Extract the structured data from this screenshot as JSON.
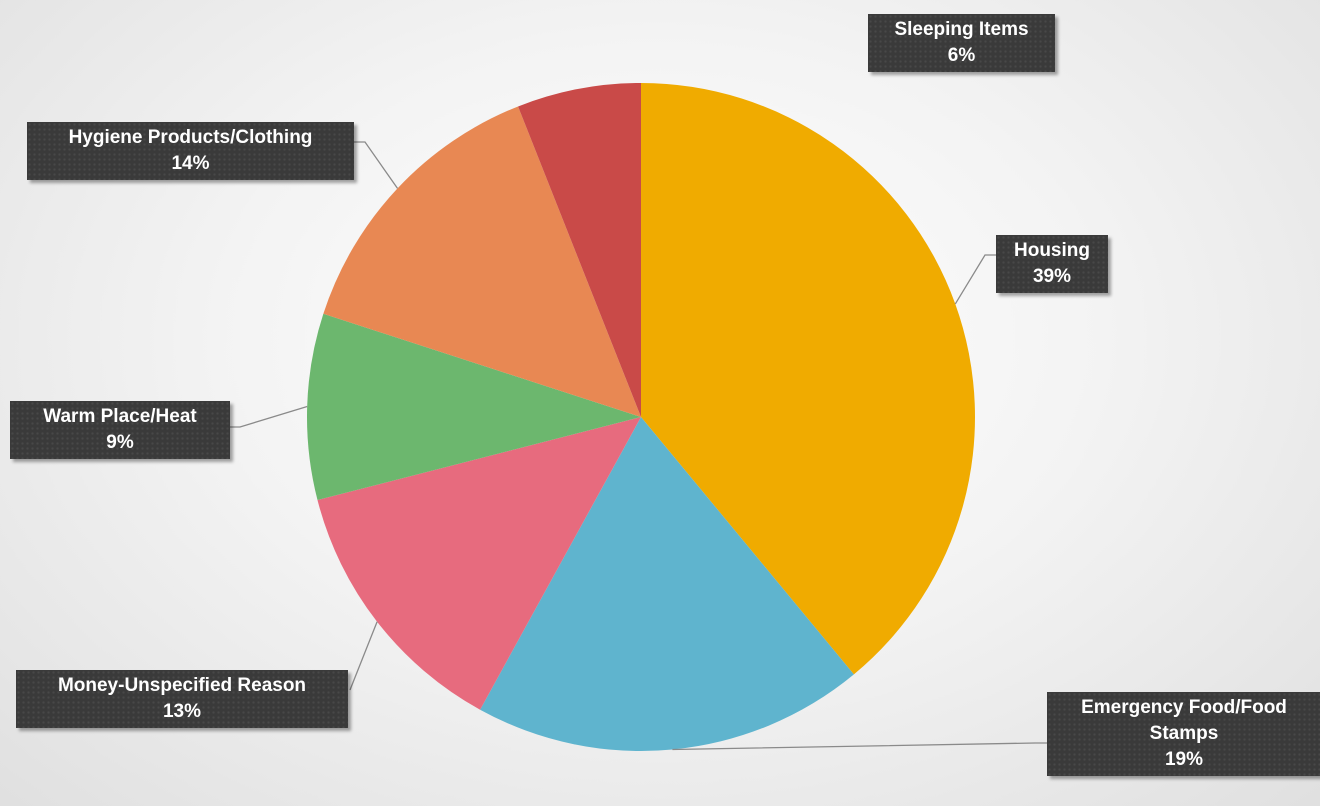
{
  "chart_data": {
    "type": "pie",
    "title": "",
    "start_angle_deg": 0,
    "direction": "clockwise",
    "slices": [
      {
        "label": "Housing",
        "value": 39,
        "pct_label": "39%",
        "color": "#F0AB00"
      },
      {
        "label": "Emergency Food/Food Stamps",
        "label_lines": [
          "Emergency Food/Food",
          "Stamps"
        ],
        "value": 19,
        "pct_label": "19%",
        "color": "#5FB4CE"
      },
      {
        "label": "Money-Unspecified Reason",
        "value": 13,
        "pct_label": "13%",
        "color": "#E76B7E"
      },
      {
        "label": "Warm Place/Heat",
        "value": 9,
        "pct_label": "9%",
        "color": "#6CB76E"
      },
      {
        "label": "Hygiene Products/Clothing",
        "value": 14,
        "pct_label": "14%",
        "color": "#E88853"
      },
      {
        "label": "Sleeping Items",
        "value": 6,
        "pct_label": "6%",
        "color": "#C94A48"
      }
    ],
    "legend": "none",
    "data_labels": "outside-callouts"
  }
}
